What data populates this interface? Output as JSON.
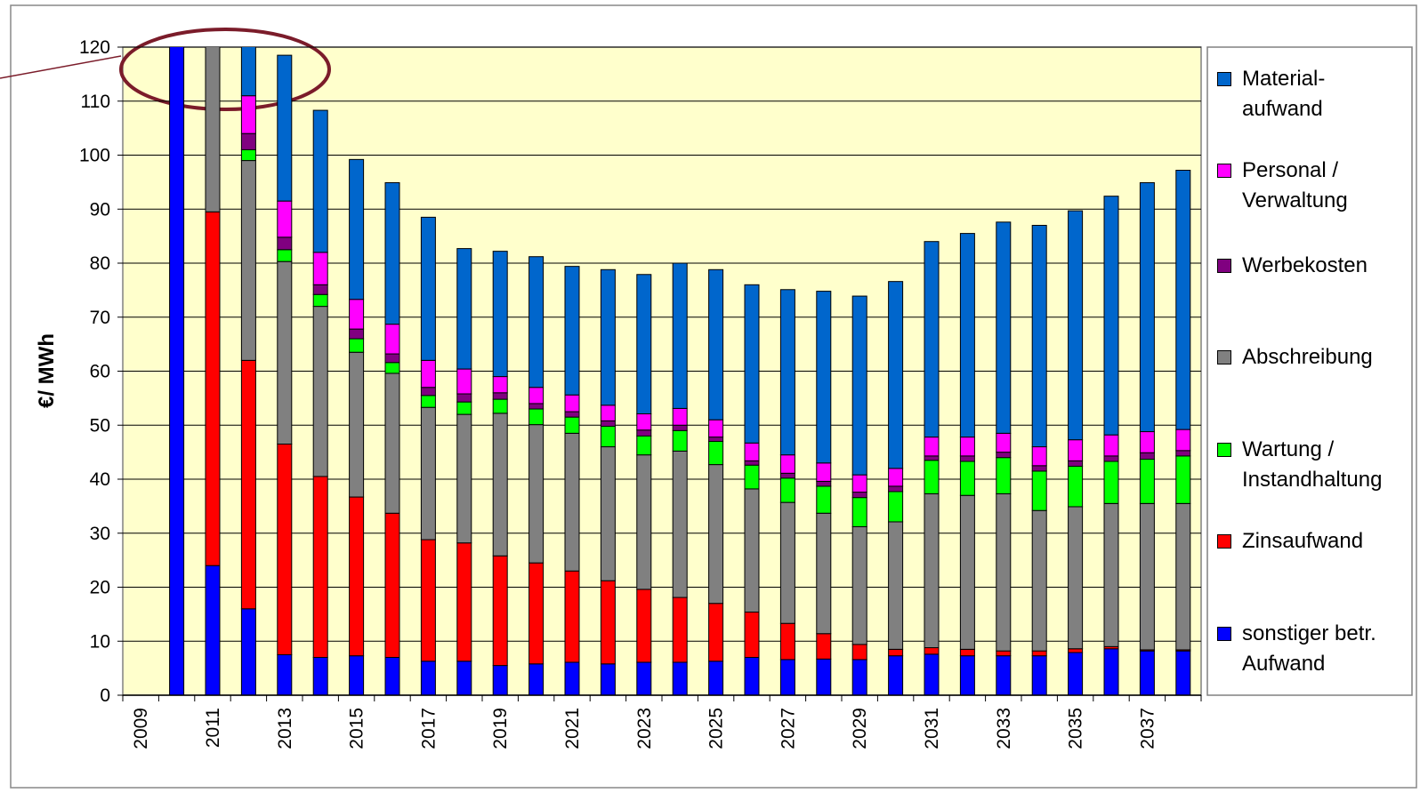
{
  "chart_data": {
    "type": "stacked_bar",
    "y_label": "€/ MWh",
    "categories": [
      "2009",
      null,
      "2011",
      null,
      "2013",
      null,
      "2015",
      null,
      "2017",
      null,
      "2019",
      null,
      "2021",
      null,
      "2023",
      null,
      "2025",
      null,
      "2027",
      null,
      "2029",
      null,
      "2031",
      null,
      "2033",
      null,
      "2035",
      null,
      "2037",
      null
    ],
    "series": [
      {
        "name": "sonstiger betr.\nAufwand",
        "color": "#0000ff",
        "values": [
          null,
          125,
          24,
          16,
          7.5,
          7,
          7.3,
          7,
          6.3,
          6.3,
          5.5,
          5.8,
          6.1,
          5.8,
          6.1,
          6.1,
          6.3,
          7,
          6.6,
          6.7,
          6.6,
          7.3,
          7.6,
          7.3,
          7.3,
          7.3,
          7.9,
          8.6,
          8.2,
          8.2
        ]
      },
      {
        "name": "Zinsaufwand",
        "color": "#ff0000",
        "values": [
          null,
          null,
          65.5,
          46,
          39,
          33.5,
          29.4,
          26.7,
          22.5,
          21.9,
          20.3,
          18.7,
          16.9,
          15.4,
          13.5,
          12,
          10.7,
          8.4,
          6.7,
          4.7,
          2.8,
          1.2,
          1.2,
          1.2,
          0.9,
          0.9,
          0.7,
          0.4,
          0.2,
          0.2
        ]
      },
      {
        "name": "Abschreibung",
        "color": "#808080",
        "values": [
          null,
          null,
          35,
          37,
          33.8,
          31.5,
          26.8,
          25.9,
          24.5,
          23.8,
          26.4,
          25.6,
          25.5,
          24.8,
          24.9,
          27.1,
          25.7,
          22.8,
          22.4,
          22.3,
          21.8,
          23.6,
          28.5,
          28.5,
          29.1,
          26,
          26.3,
          26.5,
          27.1,
          27.1
        ]
      },
      {
        "name": "Wartung /\nInstandhaltung",
        "color": "#00ff00",
        "values": [
          null,
          null,
          null,
          2,
          2.2,
          2.2,
          2.5,
          2,
          2.2,
          2.3,
          2.6,
          2.9,
          3,
          3.8,
          3.5,
          3.8,
          4.3,
          4.4,
          4.5,
          5,
          5.4,
          5.6,
          6.2,
          6.3,
          6.7,
          7.3,
          7.5,
          7.8,
          8.2,
          8.8
        ]
      },
      {
        "name": "Werbekosten",
        "color": "#800080",
        "values": [
          null,
          null,
          null,
          3,
          2.3,
          1.8,
          1.8,
          1.6,
          1.5,
          1.5,
          1.2,
          1,
          1,
          1,
          1.1,
          1,
          0.8,
          0.8,
          0.9,
          0.9,
          1,
          1,
          0.8,
          1,
          1,
          1,
          1,
          1,
          1.2,
          1
        ]
      },
      {
        "name": "Personal /\nVerwaltung",
        "color": "#ff00ff",
        "values": [
          null,
          null,
          null,
          7,
          6.7,
          6,
          5.5,
          5.5,
          5,
          4.6,
          3,
          3,
          3.1,
          2.9,
          3,
          3.1,
          3.2,
          3.3,
          3.4,
          3.4,
          3.2,
          3.3,
          3.5,
          3.5,
          3.5,
          3.5,
          3.9,
          3.9,
          3.9,
          3.9
        ]
      },
      {
        "name": "Material-\naufwand",
        "color": "#0066cc",
        "values": [
          null,
          null,
          null,
          12,
          27,
          26.3,
          25.9,
          26.2,
          26.5,
          22.3,
          23.2,
          24.2,
          23.8,
          25.1,
          25.8,
          26.9,
          27.8,
          29.3,
          30.6,
          31.8,
          33.1,
          34.6,
          36.2,
          37.7,
          39.1,
          41,
          42.4,
          44.2,
          46.1,
          48
        ]
      }
    ],
    "ylim": [
      0,
      120
    ],
    "yticks": [
      0,
      10,
      20,
      30,
      40,
      50,
      60,
      70,
      80,
      90,
      100,
      110,
      120
    ],
    "grid": true,
    "legend": "right",
    "plot_background": "#ffffcc"
  }
}
